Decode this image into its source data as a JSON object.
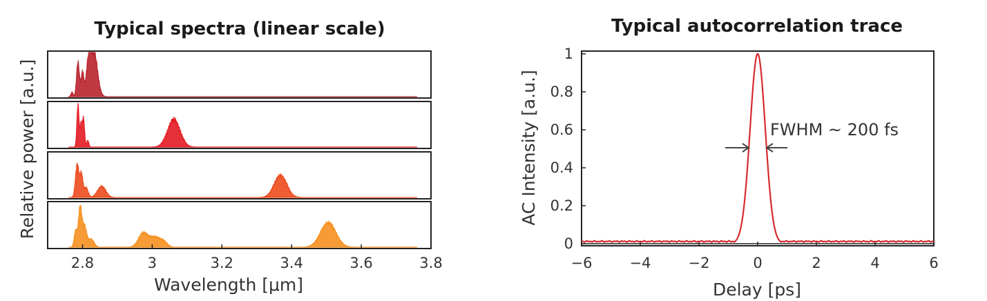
{
  "chart_data": [
    {
      "type": "area",
      "title": "Typical spectra (linear scale)",
      "xlabel": "Wavelength [μm]",
      "ylabel": "Relative power [a.u.]",
      "xlim": [
        2.7,
        3.8
      ],
      "xticks": [
        "2.8",
        "3",
        "3.2",
        "3.4",
        "3.6",
        "3.8"
      ],
      "xtick_values": [
        2.8,
        3.0,
        3.2,
        3.4,
        3.6,
        3.8
      ],
      "series": [
        {
          "color": "#b8232d",
          "peaks": [
            {
              "center": 2.77,
              "height": 0.1,
              "width": 0.003
            },
            {
              "center": 2.787,
              "height": 0.78,
              "width": 0.004
            },
            {
              "center": 2.8,
              "height": 0.55,
              "width": 0.004
            },
            {
              "center": 2.817,
              "height": 0.7,
              "width": 0.006
            },
            {
              "center": 2.833,
              "height": 1.0,
              "width": 0.01
            }
          ]
        },
        {
          "color": "#e31b23",
          "peaks": [
            {
              "center": 2.787,
              "height": 0.95,
              "width": 0.003
            },
            {
              "center": 2.796,
              "height": 0.5,
              "width": 0.003
            },
            {
              "center": 2.803,
              "height": 0.62,
              "width": 0.003
            },
            {
              "center": 2.815,
              "height": 0.15,
              "width": 0.003
            },
            {
              "center": 3.062,
              "height": 0.62,
              "width": 0.018
            }
          ]
        },
        {
          "color": "#ec4b1d",
          "peaks": [
            {
              "center": 2.785,
              "height": 0.75,
              "width": 0.005
            },
            {
              "center": 2.797,
              "height": 0.5,
              "width": 0.004
            },
            {
              "center": 2.81,
              "height": 0.22,
              "width": 0.006
            },
            {
              "center": 2.855,
              "height": 0.25,
              "width": 0.012
            },
            {
              "center": 3.368,
              "height": 0.5,
              "width": 0.018
            }
          ]
        },
        {
          "color": "#f5901f",
          "peaks": [
            {
              "center": 2.78,
              "height": 0.35,
              "width": 0.004
            },
            {
              "center": 2.793,
              "height": 0.88,
              "width": 0.005
            },
            {
              "center": 2.806,
              "height": 0.45,
              "width": 0.006
            },
            {
              "center": 2.825,
              "height": 0.18,
              "width": 0.008
            },
            {
              "center": 2.975,
              "height": 0.32,
              "width": 0.014
            },
            {
              "center": 3.01,
              "height": 0.22,
              "width": 0.014
            },
            {
              "center": 3.035,
              "height": 0.1,
              "width": 0.01
            },
            {
              "center": 3.505,
              "height": 0.55,
              "width": 0.022
            }
          ]
        }
      ]
    },
    {
      "type": "line",
      "title": "Typical autocorrelation trace",
      "xlabel": "Delay [ps]",
      "ylabel": "AC Intensity [a.u.]",
      "xlim": [
        -6,
        6
      ],
      "ylim": [
        0,
        1
      ],
      "xticks": [
        "−6",
        "−4",
        "−2",
        "0",
        "2",
        "4",
        "6"
      ],
      "xtick_values": [
        -6,
        -4,
        -2,
        0,
        2,
        4,
        6
      ],
      "yticks": [
        "0",
        "0.2",
        "0.4",
        "0.6",
        "0.8",
        "1"
      ],
      "ytick_values": [
        0,
        0.2,
        0.4,
        0.6,
        0.8,
        1
      ],
      "color": "#d62a2e",
      "fwhm_ps": 0.2,
      "peak_center": 0,
      "peak_height": 1.0,
      "baseline": 0.012,
      "annotation": "FWHM ~ 200 fs"
    }
  ]
}
